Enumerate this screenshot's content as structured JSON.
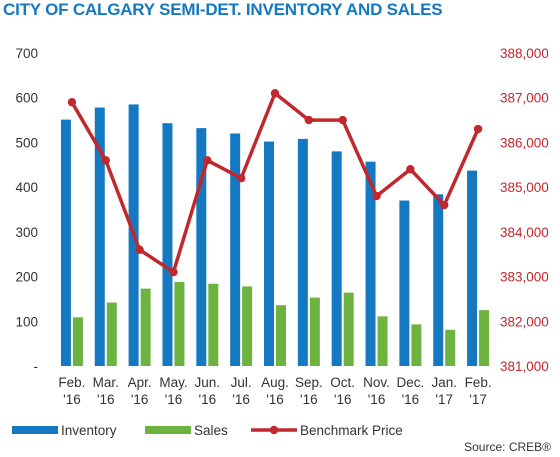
{
  "chart_data": {
    "type": "bar",
    "title": "CITY OF CALGARY SEMI-DET. INVENTORY AND SALES",
    "source": "Source: CREB®",
    "categories": [
      [
        "Feb.",
        "'16"
      ],
      [
        "Mar.",
        "'16"
      ],
      [
        "Apr.",
        "'16"
      ],
      [
        "May.",
        "'16"
      ],
      [
        "Jun.",
        "'16"
      ],
      [
        "Jul.",
        "'16"
      ],
      [
        "Aug.",
        "'16"
      ],
      [
        "Sep.",
        "'16"
      ],
      [
        "Oct.",
        "'16"
      ],
      [
        "Nov.",
        "'16"
      ],
      [
        "Dec.",
        "'16"
      ],
      [
        "Jan.",
        "'17"
      ],
      [
        "Feb.",
        "'17"
      ]
    ],
    "series": [
      {
        "name": "Inventory",
        "type": "bar",
        "axis": "left",
        "color": "#1479c0",
        "values": [
          551,
          578,
          585,
          543,
          532,
          520,
          502,
          508,
          480,
          457,
          370,
          384,
          437
        ]
      },
      {
        "name": "Sales",
        "type": "bar",
        "axis": "left",
        "color": "#6db33f",
        "values": [
          109,
          142,
          173,
          188,
          184,
          178,
          136,
          153,
          164,
          111,
          93,
          81,
          125
        ]
      },
      {
        "name": "Benchmark Price",
        "type": "line",
        "axis": "right",
        "color": "#c0282d",
        "values": [
          386900,
          385600,
          383600,
          383100,
          385600,
          385200,
          387100,
          386500,
          386500,
          384800,
          385400,
          384600,
          386300
        ]
      }
    ],
    "left_axis": {
      "ticks": [
        "-",
        "100",
        "200",
        "300",
        "400",
        "500",
        "600",
        "700"
      ],
      "ylim": [
        0,
        700
      ]
    },
    "right_axis": {
      "ticks": [
        "381,000",
        "382,000",
        "383,000",
        "384,000",
        "385,000",
        "386,000",
        "387,000",
        "388,000"
      ],
      "ylim": [
        381000,
        388000
      ]
    },
    "grid": false,
    "legend_position": "bottom"
  }
}
